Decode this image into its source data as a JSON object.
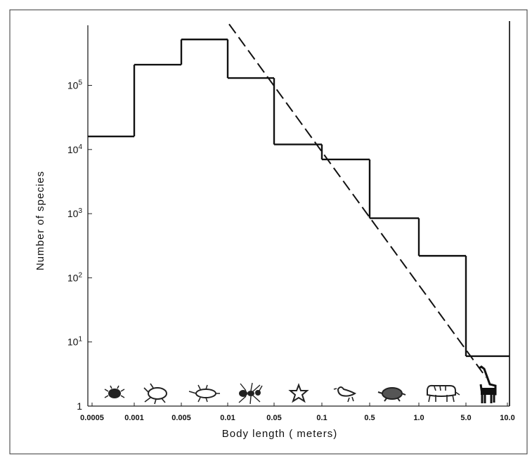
{
  "chart_data": {
    "type": "step-histogram",
    "title": "",
    "xlabel": "Body length ( meters)",
    "ylabel": "Number of species",
    "x_scale": "log",
    "y_scale": "log",
    "x_tick_values": [
      0.0005,
      0.001,
      0.005,
      0.01,
      0.05,
      0.1,
      0.5,
      1.0,
      5.0,
      10.0
    ],
    "x_tick_labels": [
      "0.0005",
      "0.001",
      "0.005",
      "0.01",
      "0.05",
      "0.1",
      "0.5",
      "1.0",
      "5.0",
      "10.0"
    ],
    "y_tick_values": [
      1,
      10,
      100,
      1000,
      10000,
      100000
    ],
    "y_tick_labels": [
      {
        "base": "1",
        "exp": ""
      },
      {
        "base": "10",
        "exp": "1"
      },
      {
        "base": "10",
        "exp": "2"
      },
      {
        "base": "10",
        "exp": "3"
      },
      {
        "base": "10",
        "exp": "4"
      },
      {
        "base": "10",
        "exp": "5"
      }
    ],
    "xlim": [
      0.0003,
      11
    ],
    "ylim": [
      1,
      1000000
    ],
    "bins": [
      {
        "x0": 0.0003,
        "x1": 0.001,
        "value": 16000
      },
      {
        "x0": 0.001,
        "x1": 0.003,
        "value": 210000
      },
      {
        "x0": 0.003,
        "x1": 0.01,
        "value": 520000
      },
      {
        "x0": 0.01,
        "x1": 0.05,
        "value": 130000
      },
      {
        "x0": 0.05,
        "x1": 0.1,
        "value": 12000
      },
      {
        "x0": 0.1,
        "x1": 0.5,
        "value": 7000
      },
      {
        "x0": 0.5,
        "x1": 1.0,
        "value": 850
      },
      {
        "x0": 1.0,
        "x1": 5.0,
        "value": 220
      },
      {
        "x0": 5.0,
        "x1": 11,
        "value": 6
      }
    ],
    "fit_line": {
      "style": "dashed",
      "points": [
        [
          0.0105,
          900000
        ],
        [
          7.0,
          2.8
        ]
      ]
    },
    "organism_icons": [
      "mite",
      "flea",
      "beetle",
      "ant",
      "starfish",
      "bird",
      "turtle",
      "tiger",
      "giraffe"
    ],
    "grid": false
  }
}
